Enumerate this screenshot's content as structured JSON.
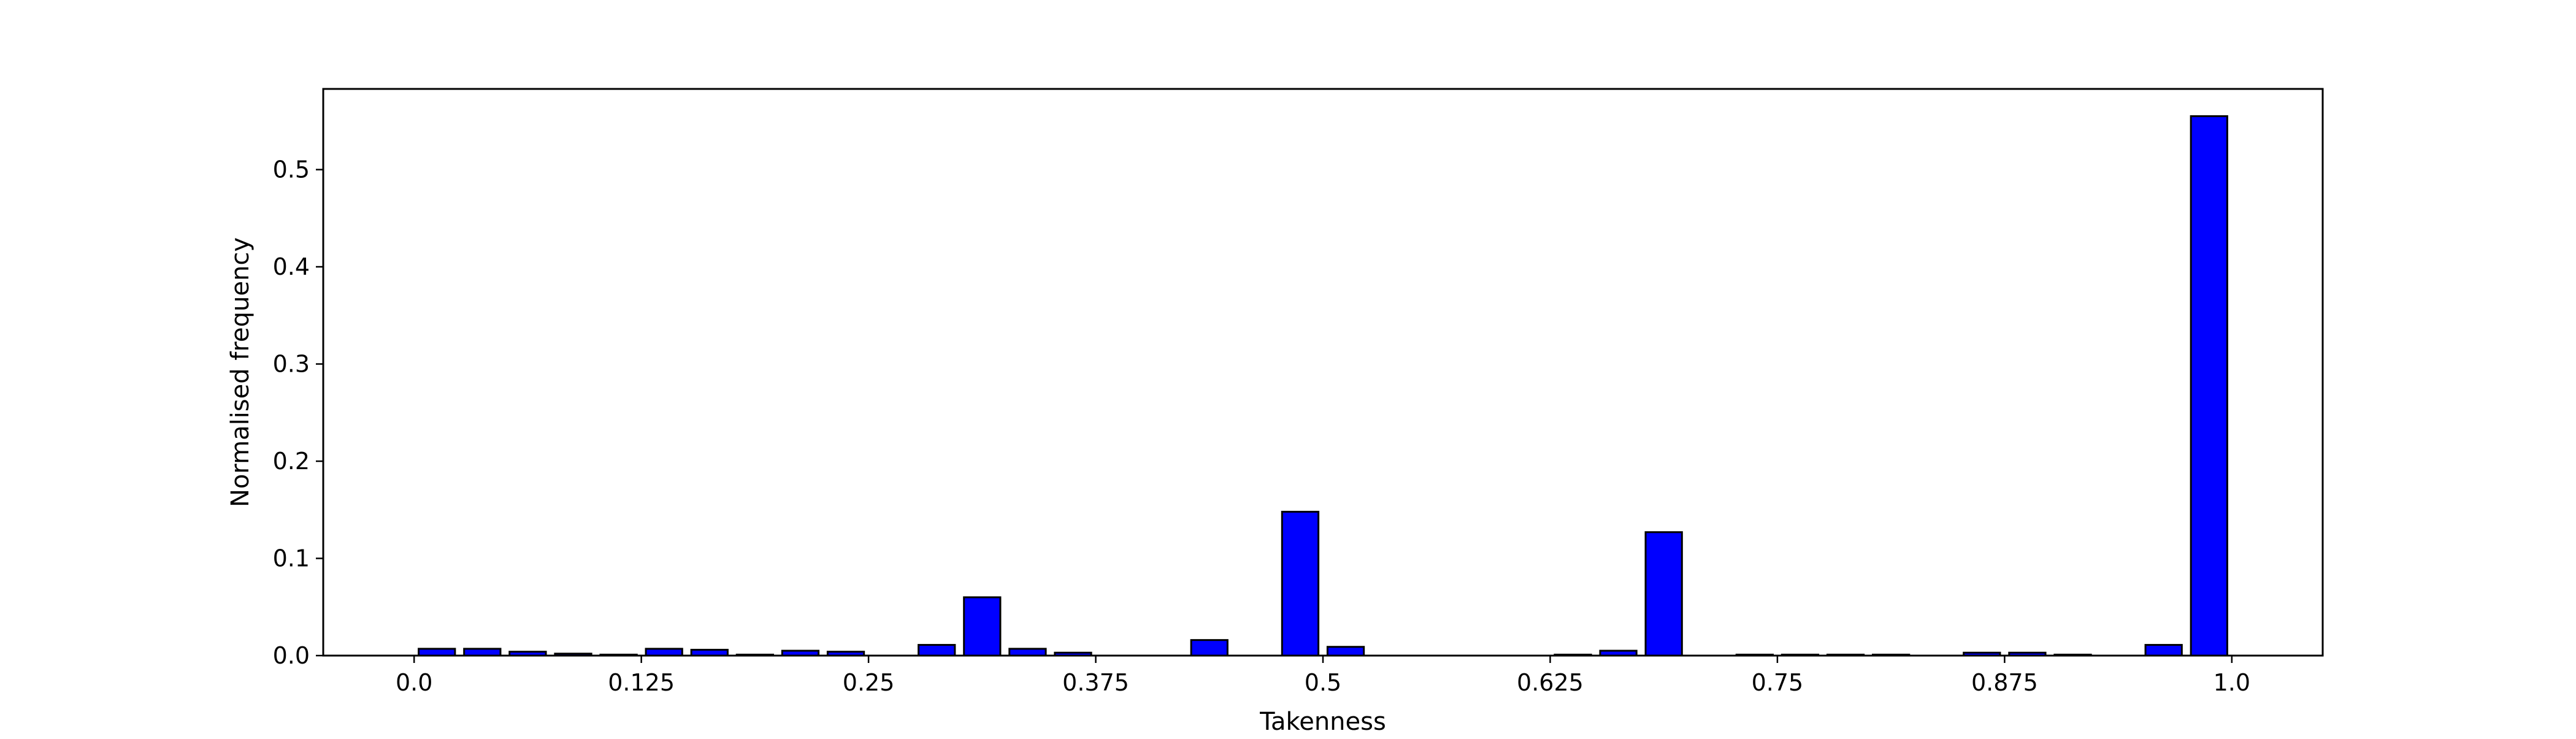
{
  "chart_data": {
    "type": "bar",
    "xlabel": "Takenness",
    "ylabel": "Normalised frequency",
    "xlim": [
      -0.05,
      1.05
    ],
    "ylim": [
      0,
      0.583
    ],
    "grid": false,
    "x_ticks": [
      {
        "value": 0.0,
        "label": "0.0"
      },
      {
        "value": 0.125,
        "label": "0.125"
      },
      {
        "value": 0.25,
        "label": "0.25"
      },
      {
        "value": 0.375,
        "label": "0.375"
      },
      {
        "value": 0.5,
        "label": "0.5"
      },
      {
        "value": 0.625,
        "label": "0.625"
      },
      {
        "value": 0.75,
        "label": "0.75"
      },
      {
        "value": 0.875,
        "label": "0.875"
      },
      {
        "value": 1.0,
        "label": "1.0"
      }
    ],
    "y_ticks": [
      {
        "value": 0.0,
        "label": "0.0"
      },
      {
        "value": 0.1,
        "label": "0.1"
      },
      {
        "value": 0.2,
        "label": "0.2"
      },
      {
        "value": 0.3,
        "label": "0.3"
      },
      {
        "value": 0.4,
        "label": "0.4"
      },
      {
        "value": 0.5,
        "label": "0.5"
      }
    ],
    "bar_width": 0.02,
    "x": [
      0.0125,
      0.0375,
      0.0625,
      0.0875,
      0.1125,
      0.1375,
      0.1625,
      0.1875,
      0.2125,
      0.2375,
      0.2625,
      0.2875,
      0.3125,
      0.3375,
      0.3625,
      0.3875,
      0.4125,
      0.4375,
      0.4625,
      0.4875,
      0.5125,
      0.5375,
      0.5625,
      0.5875,
      0.6125,
      0.6375,
      0.6625,
      0.6875,
      0.7125,
      0.7375,
      0.7625,
      0.7875,
      0.8125,
      0.8375,
      0.8625,
      0.8875,
      0.9125,
      0.9375,
      0.9625,
      0.9875
    ],
    "values": [
      0.007,
      0.007,
      0.004,
      0.002,
      0.001,
      0.007,
      0.006,
      0.001,
      0.005,
      0.004,
      0.0,
      0.011,
      0.06,
      0.007,
      0.003,
      0.0,
      0.0,
      0.016,
      0.0,
      0.148,
      0.009,
      0.0,
      0.0,
      0.0,
      0.0,
      0.001,
      0.005,
      0.127,
      0.0,
      0.001,
      0.001,
      0.001,
      0.001,
      0.0,
      0.003,
      0.003,
      0.001,
      0.0,
      0.011,
      0.555
    ],
    "colors": {
      "bar_fill": "#0000ff",
      "bar_edge": "#000000",
      "axes": "#000000"
    }
  }
}
